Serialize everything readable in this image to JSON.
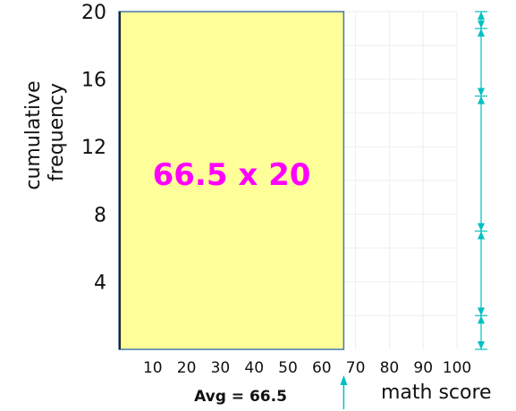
{
  "chart_data": {
    "type": "area",
    "title": "",
    "xlabel": "math score",
    "ylabel": "cumulative frequency",
    "xlim": [
      0,
      100
    ],
    "ylim": [
      0,
      20
    ],
    "x_ticks": [
      "10",
      "20",
      "30",
      "40",
      "50",
      "60",
      "70",
      "80",
      "90",
      "100"
    ],
    "y_ticks": [
      "4",
      "8",
      "12",
      "16",
      "20"
    ],
    "top_tick": "20",
    "rectangle": {
      "width": 66.5,
      "height": 20,
      "label": "66.5 x 20"
    },
    "average": {
      "value": 66.5,
      "label": "Avg = 66.5"
    },
    "bracket_breaks": [
      20,
      19,
      15,
      7,
      2,
      0
    ],
    "grid": true,
    "colors": {
      "fill": "#ffff99",
      "rect_edge": "#4477aa",
      "label": "#ff00ff",
      "arrows": "#00c0c0",
      "grid": "#eeeeee",
      "axis": "#222222"
    }
  }
}
